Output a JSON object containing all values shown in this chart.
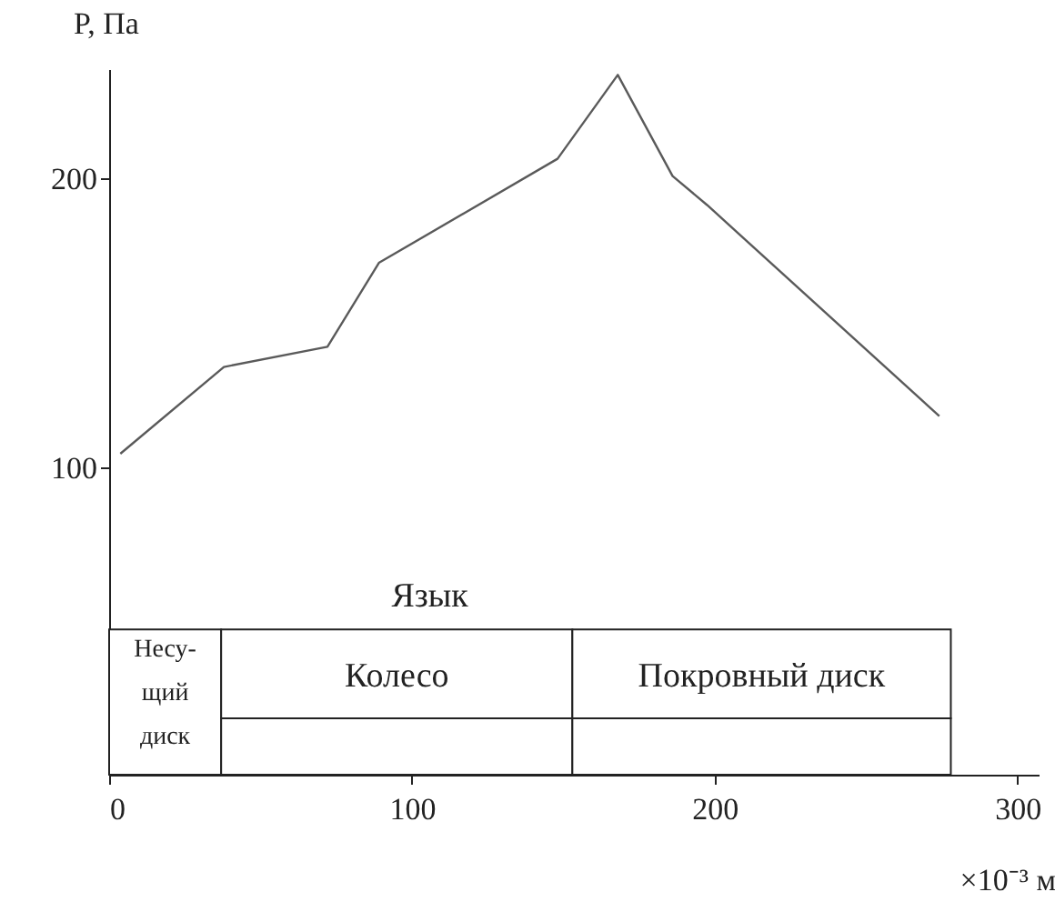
{
  "chart_data": {
    "type": "line",
    "ylabel": "P, Па",
    "xlabel": "×10⁻³ м",
    "x": [
      3.7,
      37.9,
      72.1,
      89.1,
      148.1,
      168.0,
      186.1,
      197.5,
      274.2
    ],
    "series": [
      {
        "color": "#5a5a5a",
        "values": [
          105,
          135,
          142,
          171,
          207,
          236,
          201,
          191,
          118
        ]
      }
    ],
    "xlim": [
      0,
      307
    ],
    "ylim": [
      -6,
      238
    ],
    "xticks": [
      0,
      100,
      200,
      300
    ],
    "yticks": [
      100,
      200
    ],
    "bands": [
      {
        "axis": "x",
        "from": 0,
        "to": 37,
        "label": "Несу-щий диск",
        "color": "#222222"
      },
      {
        "axis": "x",
        "from": 37,
        "to": 153,
        "label": "Колесо",
        "color": "#222222"
      },
      {
        "axis": "x",
        "from": 153,
        "to": 278,
        "label": "Покровный диск",
        "color": "#222222"
      },
      {
        "axis": "x",
        "from": 37,
        "to": 153,
        "color": "#222222"
      },
      {
        "axis": "x",
        "from": 153,
        "to": 278,
        "color": "#222222"
      }
    ],
    "annotations": [
      "Язык"
    ],
    "grid": false,
    "marker": "none",
    "line_style": "solid"
  }
}
